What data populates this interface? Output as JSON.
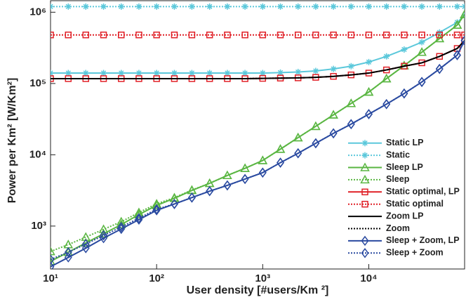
{
  "chart_data": {
    "type": "line",
    "log_x": true,
    "log_y": true,
    "x_label": "User density [#users/Km ²]",
    "y_label": "Power per Km² [W/Km²]",
    "xlim": [
      10,
      80000
    ],
    "ylim": [
      250,
      1450000
    ],
    "xticks": [
      {
        "value": 10,
        "label": "10¹"
      },
      {
        "value": 100,
        "label": "10²"
      },
      {
        "value": 1000,
        "label": "10³"
      },
      {
        "value": 10000,
        "label": "10⁴"
      }
    ],
    "yticks": [
      {
        "value": 1000,
        "label": "10³"
      },
      {
        "value": 10000,
        "label": "10⁴"
      },
      {
        "value": 100000,
        "label": "10⁵"
      },
      {
        "value": 1000000,
        "label": "10⁶"
      }
    ],
    "legend": "lower right",
    "x": [
      10,
      14.7,
      21.5,
      31.6,
      46.4,
      68.1,
      100,
      147,
      215,
      316,
      464,
      681,
      1000,
      1468,
      2154,
      3162,
      4642,
      6813,
      10000,
      14678,
      21544,
      31623,
      46416,
      68129,
      80000
    ],
    "series": [
      {
        "name": "Static LP",
        "color": "#5bc8db",
        "dash": "solid",
        "marker": "star",
        "values": [
          140000,
          140000,
          140000,
          140000,
          140000,
          140000,
          140000,
          140000,
          140000,
          140000,
          140000,
          140000,
          140000,
          142000,
          145000,
          150000,
          160000,
          175000,
          200000,
          240000,
          300000,
          380000,
          520000,
          720000,
          900000
        ]
      },
      {
        "name": "Static",
        "color": "#5bc8db",
        "dash": "dotted",
        "marker": "star",
        "values": [
          1200000,
          1200000,
          1200000,
          1200000,
          1200000,
          1200000,
          1200000,
          1200000,
          1200000,
          1200000,
          1200000,
          1200000,
          1200000,
          1200000,
          1200000,
          1200000,
          1200000,
          1200000,
          1200000,
          1200000,
          1200000,
          1200000,
          1200000,
          1200000,
          1200000
        ]
      },
      {
        "name": "Sleep LP",
        "color": "#5ab642",
        "dash": "solid",
        "marker": "triangle",
        "values": [
          320,
          430,
          580,
          780,
          1050,
          1450,
          1950,
          2450,
          3160,
          3980,
          5130,
          6460,
          8320,
          12000,
          17400,
          25100,
          36300,
          52500,
          75900,
          117000,
          178000,
          275000,
          427000,
          661000,
          930000
        ]
      },
      {
        "name": "Sleep",
        "color": "#5ab642",
        "dash": "dotted",
        "marker": "triangle",
        "values": [
          440,
          550,
          700,
          900,
          1150,
          1550,
          2050,
          2500,
          3200,
          3980,
          5130,
          6460,
          8320,
          12000,
          17400,
          25100,
          36300,
          52500,
          75900,
          117000,
          178000,
          275000,
          427000,
          661000,
          930000
        ]
      },
      {
        "name": "Static optimal, LP",
        "color": "#e02027",
        "dash": "solid",
        "marker": "square",
        "values": [
          117000,
          117000,
          117000,
          117000,
          117000,
          117000,
          117000,
          117000,
          117000,
          117000,
          117000,
          117000,
          118000,
          119000,
          120000,
          122000,
          126000,
          132000,
          140000,
          155000,
          175000,
          195000,
          240000,
          310000,
          400000
        ]
      },
      {
        "name": "Static optimal",
        "color": "#e02027",
        "dash": "dotted",
        "marker": "square",
        "values": [
          480000,
          480000,
          480000,
          480000,
          480000,
          480000,
          480000,
          480000,
          480000,
          480000,
          480000,
          480000,
          480000,
          480000,
          480000,
          480000,
          480000,
          480000,
          480000,
          480000,
          480000,
          480000,
          480000,
          480000,
          480000
        ]
      },
      {
        "name": "Zoom LP",
        "color": "#000000",
        "dash": "solid",
        "marker": "none",
        "values": [
          117000,
          117000,
          117000,
          117000,
          117000,
          117000,
          117000,
          117000,
          117000,
          117000,
          117000,
          117000,
          118000,
          119000,
          120000,
          122000,
          126000,
          132000,
          140000,
          155000,
          175000,
          195000,
          240000,
          310000,
          400000
        ]
      },
      {
        "name": "Zoom",
        "color": "#000000",
        "dash": "dotted",
        "marker": "none",
        "values": [
          117000,
          117000,
          117000,
          117000,
          117000,
          117000,
          117000,
          117000,
          117000,
          117000,
          117000,
          117000,
          118000,
          119000,
          120000,
          122000,
          126000,
          132000,
          140000,
          155000,
          175000,
          195000,
          240000,
          310000,
          400000
        ]
      },
      {
        "name": "Sleep + Zoom, LP",
        "color": "#2a4aa0",
        "dash": "solid",
        "marker": "diamond",
        "values": [
          269,
          363,
          490,
          676,
          912,
          1230,
          1660,
          2040,
          2510,
          3090,
          3720,
          4570,
          5620,
          7760,
          10500,
          14500,
          20000,
          26900,
          37200,
          51300,
          72400,
          105000,
          160000,
          250000,
          400000
        ]
      },
      {
        "name": "Sleep + Zoom",
        "color": "#2a4aa0",
        "dash": "dotted",
        "marker": "diamond",
        "values": [
          340,
          430,
          560,
          740,
          970,
          1290,
          1720,
          2040,
          2510,
          3090,
          3720,
          4570,
          5620,
          7760,
          10500,
          14500,
          20000,
          26900,
          37200,
          51300,
          72400,
          105000,
          160000,
          250000,
          400000
        ]
      }
    ]
  }
}
